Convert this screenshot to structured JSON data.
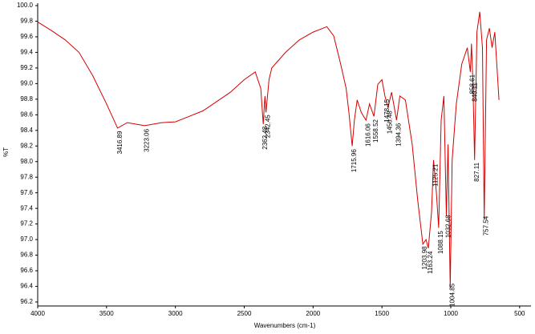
{
  "chart_data": {
    "type": "line",
    "x_label": "Wavenumbers (cm-1)",
    "y_label": "%T",
    "xlim": [
      4000,
      400
    ],
    "ylim": [
      96.2,
      100.0
    ],
    "xticks": [
      4000,
      3500,
      3000,
      2500,
      2000,
      1500,
      1000,
      500
    ],
    "yticks": [
      {
        "value": 100.0,
        "label": "100.0"
      },
      99.8,
      99.6,
      99.4,
      99.2,
      {
        "value": 99.0,
        "label": "99.0"
      },
      98.8,
      98.6,
      98.4,
      98.2,
      {
        "value": 98.0,
        "label": "98.0"
      },
      97.8,
      97.6,
      97.4,
      97.2,
      {
        "value": 97.0,
        "label": "97.0"
      },
      96.8,
      96.6,
      96.4,
      96.2
    ],
    "color": "#d40000",
    "x": [
      4000,
      3900,
      3800,
      3700,
      3600,
      3500,
      3420,
      3350,
      3223,
      3100,
      3000,
      2900,
      2800,
      2700,
      2600,
      2500,
      2420,
      2380,
      2362,
      2350,
      2342,
      2320,
      2300,
      2200,
      2100,
      2000,
      1900,
      1850,
      1800,
      1760,
      1740,
      1716,
      1700,
      1680,
      1650,
      1616,
      1590,
      1558,
      1530,
      1500,
      1478,
      1456,
      1430,
      1394,
      1370,
      1330,
      1280,
      1240,
      1203,
      1180,
      1163,
      1140,
      1125,
      1105,
      1088,
      1070,
      1050,
      1032,
      1020,
      1004,
      990,
      960,
      920,
      880,
      858,
      850,
      840,
      827,
      810,
      790,
      770,
      757,
      740,
      720,
      700,
      680,
      650
    ],
    "values": [
      99.79,
      99.68,
      99.56,
      99.4,
      99.1,
      98.74,
      98.43,
      98.5,
      98.46,
      98.5,
      98.51,
      98.58,
      98.65,
      98.77,
      98.89,
      99.05,
      99.15,
      98.94,
      98.48,
      98.84,
      98.63,
      99.05,
      99.2,
      99.4,
      99.56,
      99.66,
      99.73,
      99.61,
      99.25,
      98.94,
      98.63,
      98.2,
      98.53,
      98.79,
      98.63,
      98.53,
      98.74,
      98.58,
      98.99,
      99.05,
      98.84,
      98.69,
      98.89,
      98.53,
      98.84,
      98.79,
      98.22,
      97.5,
      96.94,
      97.0,
      96.89,
      97.35,
      98.02,
      97.61,
      97.15,
      98.53,
      98.84,
      97.3,
      98.22,
      96.38,
      98.02,
      98.74,
      99.25,
      99.46,
      99.15,
      99.51,
      99.05,
      98.02,
      99.66,
      99.92,
      99.46,
      97.25,
      99.56,
      99.71,
      99.46,
      99.66,
      98.79
    ],
    "peaks": [
      3416.89,
      3223.06,
      2362.48,
      2342.45,
      1715.96,
      1616.06,
      1558.52,
      1478.15,
      1456.48,
      1394.36,
      1203.98,
      1163.24,
      1125.21,
      1088.15,
      1032.68,
      1004.85,
      858.61,
      840.11,
      827.11,
      757.54
    ]
  }
}
